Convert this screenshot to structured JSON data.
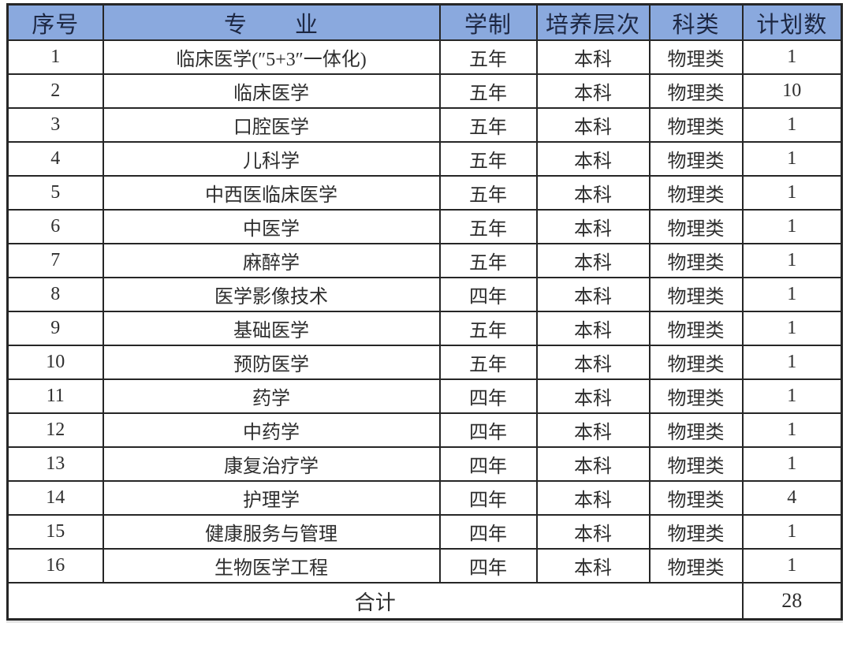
{
  "table": {
    "title_semantic": "enrollment-plan-table",
    "headers": [
      "序号",
      "专　　业",
      "学制",
      "培养层次",
      "科类",
      "计划数"
    ],
    "rows": [
      [
        "1",
        "临床医学(″5+3″一体化)",
        "五年",
        "本科",
        "物理类",
        "1"
      ],
      [
        "2",
        "临床医学",
        "五年",
        "本科",
        "物理类",
        "10"
      ],
      [
        "3",
        "口腔医学",
        "五年",
        "本科",
        "物理类",
        "1"
      ],
      [
        "4",
        "儿科学",
        "五年",
        "本科",
        "物理类",
        "1"
      ],
      [
        "5",
        "中西医临床医学",
        "五年",
        "本科",
        "物理类",
        "1"
      ],
      [
        "6",
        "中医学",
        "五年",
        "本科",
        "物理类",
        "1"
      ],
      [
        "7",
        "麻醉学",
        "五年",
        "本科",
        "物理类",
        "1"
      ],
      [
        "8",
        "医学影像技术",
        "四年",
        "本科",
        "物理类",
        "1"
      ],
      [
        "9",
        "基础医学",
        "五年",
        "本科",
        "物理类",
        "1"
      ],
      [
        "10",
        "预防医学",
        "五年",
        "本科",
        "物理类",
        "1"
      ],
      [
        "11",
        "药学",
        "四年",
        "本科",
        "物理类",
        "1"
      ],
      [
        "12",
        "中药学",
        "四年",
        "本科",
        "物理类",
        "1"
      ],
      [
        "13",
        "康复治疗学",
        "四年",
        "本科",
        "物理类",
        "1"
      ],
      [
        "14",
        "护理学",
        "四年",
        "本科",
        "物理类",
        "4"
      ],
      [
        "15",
        "健康服务与管理",
        "四年",
        "本科",
        "物理类",
        "1"
      ],
      [
        "16",
        "生物医学工程",
        "四年",
        "本科",
        "物理类",
        "1"
      ]
    ],
    "footer": {
      "label": "合计",
      "total": "28"
    },
    "colors": {
      "header_bg": "#8aa9de",
      "header_text": "#1d2742",
      "body_text": "#2e2e2e",
      "border": "#262626"
    }
  }
}
